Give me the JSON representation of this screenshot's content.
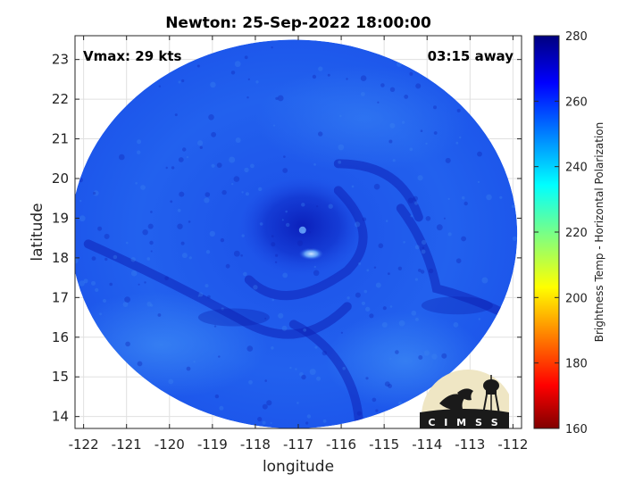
{
  "chart_data": {
    "type": "heatmap",
    "title": "Newton: 25-Sep-2022 18:00:00",
    "xlabel": "longitude",
    "ylabel": "latitude",
    "xlim": [
      -122.2,
      -111.8
    ],
    "ylim": [
      13.7,
      23.6
    ],
    "xticks": [
      -122,
      -121,
      -120,
      -119,
      -118,
      -117,
      -116,
      -115,
      -114,
      -113,
      -112
    ],
    "yticks": [
      14,
      15,
      16,
      17,
      18,
      19,
      20,
      21,
      22,
      23
    ],
    "grid": true,
    "annotations": {
      "vmax": "Vmax: 29 kts",
      "time_away": "03:15 away"
    },
    "colorbar": {
      "label": "Brightness Temp - Horizontal Polarization",
      "range": [
        160,
        280
      ],
      "ticks": [
        160,
        180,
        200,
        220,
        240,
        260,
        280
      ],
      "colormap": "jet"
    },
    "field": {
      "background_value": 257,
      "swath_center": [
        -117.1,
        18.6
      ],
      "swath_radius_deg": [
        5.2,
        4.9
      ],
      "storm_center": [
        -116.9,
        18.8
      ],
      "features": [
        {
          "name": "eye",
          "center": [
            -116.9,
            18.7
          ],
          "value": 270
        },
        {
          "name": "cold_spot",
          "center": [
            -116.7,
            18.1
          ],
          "value": 245
        },
        {
          "name": "warm_band_southwest",
          "center": [
            -118.5,
            16.5
          ],
          "value": 268
        },
        {
          "name": "warm_band_east",
          "center": [
            -113.3,
            16.8
          ],
          "value": 268
        },
        {
          "name": "cool_region_southwest",
          "center": [
            -120.0,
            16.0
          ],
          "value": 250
        }
      ]
    }
  },
  "logo": {
    "text": "C I M S S",
    "colors": {
      "disk": "#efe6c4",
      "ground": "#1a1a1a"
    }
  }
}
